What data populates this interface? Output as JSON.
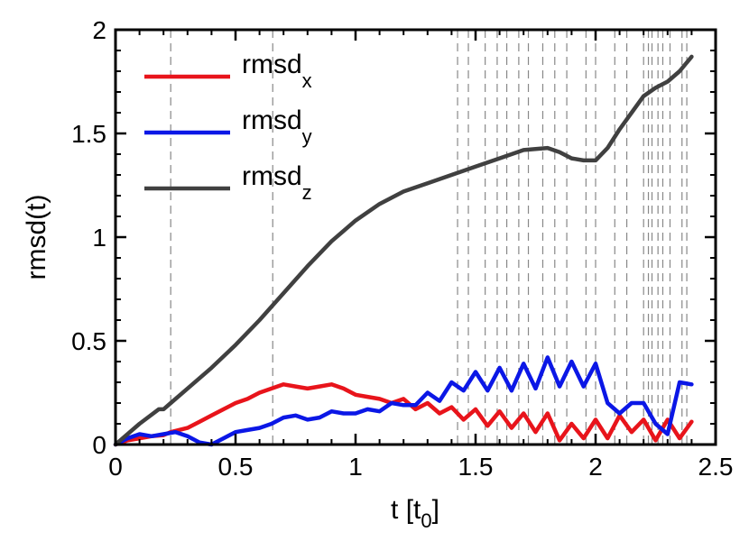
{
  "chart_data": {
    "type": "line",
    "title": "",
    "xlabel": {
      "main": "t [t",
      "sub": "0",
      "tail": "]"
    },
    "ylabel": "rmsd(t)",
    "xlim": [
      0,
      2.5
    ],
    "ylim": [
      0,
      2
    ],
    "x_ticks": [
      0,
      0.5,
      1,
      1.5,
      2,
      2.5
    ],
    "x_tick_labels": [
      "0",
      "0.5",
      "1",
      "1.5",
      "2",
      "2.5"
    ],
    "y_ticks": [
      0,
      0.5,
      1,
      1.5,
      2
    ],
    "y_tick_labels": [
      "0",
      "0.5",
      "1",
      "1.5",
      "2"
    ],
    "grid": false,
    "legend_position": "top-left",
    "vertical_dashed_lines": [
      0.23,
      0.655,
      1.425,
      1.47,
      1.54,
      1.59,
      1.63,
      1.68,
      1.72,
      1.78,
      1.83,
      1.88,
      1.96,
      2.0,
      2.08,
      2.13,
      2.2,
      2.22,
      2.235,
      2.26,
      2.28,
      2.31,
      2.36,
      2.38
    ],
    "vline_color": "#888888",
    "series": [
      {
        "name": "rmsd",
        "name_sub": "x",
        "color": "#e8141b",
        "x": [
          0,
          0.05,
          0.1,
          0.15,
          0.2,
          0.23,
          0.3,
          0.35,
          0.4,
          0.45,
          0.5,
          0.55,
          0.6,
          0.65,
          0.7,
          0.75,
          0.8,
          0.85,
          0.9,
          0.95,
          1.0,
          1.05,
          1.1,
          1.15,
          1.2,
          1.25,
          1.3,
          1.35,
          1.4,
          1.45,
          1.5,
          1.55,
          1.6,
          1.65,
          1.7,
          1.75,
          1.8,
          1.85,
          1.9,
          1.95,
          2.0,
          2.05,
          2.1,
          2.15,
          2.2,
          2.25,
          2.3,
          2.35,
          2.4
        ],
        "y": [
          0,
          0.02,
          0.03,
          0.04,
          0.045,
          0.06,
          0.08,
          0.11,
          0.14,
          0.17,
          0.2,
          0.22,
          0.25,
          0.27,
          0.29,
          0.28,
          0.27,
          0.28,
          0.29,
          0.27,
          0.24,
          0.23,
          0.22,
          0.2,
          0.22,
          0.17,
          0.2,
          0.15,
          0.18,
          0.12,
          0.17,
          0.09,
          0.16,
          0.08,
          0.15,
          0.06,
          0.15,
          0.02,
          0.1,
          0.03,
          0.12,
          0.03,
          0.14,
          0.06,
          0.12,
          0.02,
          0.12,
          0.03,
          0.11
        ]
      },
      {
        "name": "rmsd",
        "name_sub": "y",
        "color": "#0b17e6",
        "x": [
          0,
          0.05,
          0.1,
          0.15,
          0.2,
          0.25,
          0.3,
          0.35,
          0.4,
          0.45,
          0.5,
          0.55,
          0.6,
          0.65,
          0.7,
          0.75,
          0.8,
          0.85,
          0.9,
          0.95,
          1.0,
          1.05,
          1.1,
          1.15,
          1.2,
          1.25,
          1.3,
          1.35,
          1.4,
          1.45,
          1.5,
          1.55,
          1.6,
          1.65,
          1.7,
          1.75,
          1.8,
          1.85,
          1.9,
          1.95,
          2.0,
          2.05,
          2.1,
          2.15,
          2.2,
          2.25,
          2.3,
          2.35,
          2.4
        ],
        "y": [
          0,
          0.03,
          0.05,
          0.04,
          0.05,
          0.06,
          0.04,
          0.01,
          0.0,
          0.03,
          0.06,
          0.07,
          0.08,
          0.1,
          0.13,
          0.14,
          0.12,
          0.13,
          0.16,
          0.15,
          0.15,
          0.17,
          0.16,
          0.2,
          0.19,
          0.19,
          0.25,
          0.21,
          0.3,
          0.26,
          0.35,
          0.26,
          0.37,
          0.26,
          0.39,
          0.27,
          0.42,
          0.28,
          0.4,
          0.28,
          0.39,
          0.2,
          0.15,
          0.2,
          0.2,
          0.1,
          0.05,
          0.3,
          0.29
        ]
      },
      {
        "name": "rmsd",
        "name_sub": "z",
        "color": "#404040",
        "x": [
          0,
          0.1,
          0.18,
          0.2,
          0.23,
          0.3,
          0.4,
          0.5,
          0.6,
          0.7,
          0.8,
          0.9,
          1.0,
          1.1,
          1.2,
          1.3,
          1.4,
          1.5,
          1.6,
          1.7,
          1.8,
          1.85,
          1.9,
          1.95,
          2.0,
          2.05,
          2.1,
          2.15,
          2.2,
          2.25,
          2.3,
          2.35,
          2.4
        ],
        "y": [
          0,
          0.1,
          0.17,
          0.17,
          0.2,
          0.27,
          0.37,
          0.48,
          0.6,
          0.73,
          0.86,
          0.98,
          1.08,
          1.16,
          1.22,
          1.26,
          1.3,
          1.34,
          1.38,
          1.42,
          1.43,
          1.41,
          1.38,
          1.37,
          1.37,
          1.43,
          1.52,
          1.6,
          1.68,
          1.72,
          1.75,
          1.8,
          1.87
        ]
      }
    ]
  }
}
